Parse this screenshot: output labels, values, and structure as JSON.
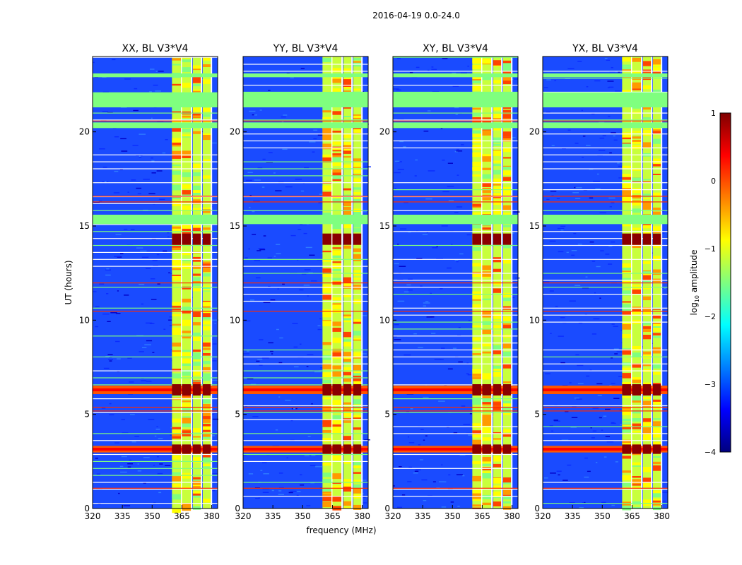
{
  "figure_title": "2016-04-19 0.0-24.0",
  "colors": {
    "jet": [
      "#00007f",
      "#0000ff",
      "#007fff",
      "#00ffff",
      "#7fff7f",
      "#ffff00",
      "#ff7f00",
      "#ff0000",
      "#7f0000"
    ],
    "flag_band": "#7fff7f",
    "flag_line": "#ffffff",
    "rfi_line": "#ff2a00"
  },
  "chart_data": {
    "type": "heatmap",
    "xlabel": "frequency (MHz)",
    "ylabel": "UT (hours)",
    "xlim": [
      320,
      383
    ],
    "ylim": [
      0,
      24
    ],
    "xticks": [
      "320",
      "335",
      "350",
      "365",
      "380"
    ],
    "xtick_values": [
      320,
      335,
      350,
      365,
      380
    ],
    "yticks": [
      "0",
      "5",
      "10",
      "15",
      "20"
    ],
    "ytick_values": [
      0,
      5,
      10,
      15,
      20
    ],
    "panels": [
      {
        "title": "XX, BL V3*V4",
        "pol": "XX"
      },
      {
        "title": "YY, BL V3*V4",
        "pol": "YY"
      },
      {
        "title": "XY, BL V3*V4",
        "pol": "XY"
      },
      {
        "title": "YX, BL V3*V4",
        "pol": "YX"
      }
    ],
    "rfi_channels_mhz": [
      [
        360,
        364.5
      ],
      [
        365,
        369.5
      ],
      [
        370.5,
        374.5
      ],
      [
        375.5,
        379.5
      ]
    ],
    "flagged_bands_hours": [
      [
        15.1,
        15.6
      ],
      [
        20.2,
        20.5
      ],
      [
        21.3,
        22.1
      ],
      [
        22.9,
        23.1
      ]
    ],
    "strong_rfi_hours": [
      [
        2.9,
        3.4
      ],
      [
        6.0,
        6.6
      ],
      [
        14.0,
        14.6
      ]
    ],
    "colorbar": {
      "label": "log10 amplitude",
      "label_main": "log",
      "label_sub": "10",
      "label_rest": " amplitude",
      "range": [
        -4,
        1
      ],
      "ticks": [
        "1",
        "0",
        "−1",
        "−2",
        "−3",
        "−4"
      ],
      "tick_values": [
        1,
        0,
        -1,
        -2,
        -3,
        -4
      ]
    }
  }
}
